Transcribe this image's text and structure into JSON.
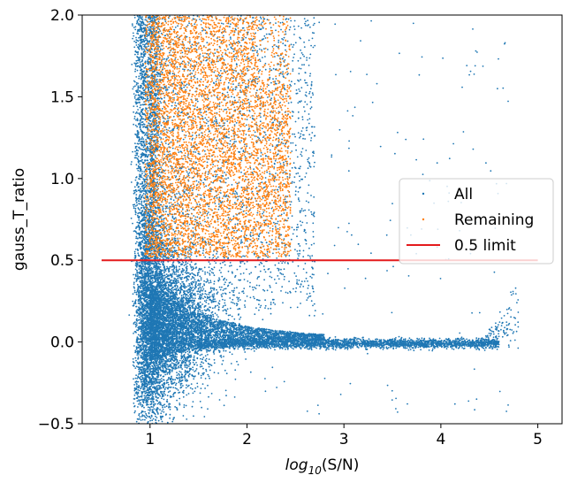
{
  "chart_data": {
    "type": "scatter",
    "title": "",
    "xlabel_prefix": "log",
    "xlabel_subscript": "10",
    "xlabel_suffix": "(S/N)",
    "ylabel": "gauss_T_ratio",
    "xlim": [
      0.3,
      5.25
    ],
    "ylim": [
      -0.5,
      2.0
    ],
    "x_ticks": [
      1,
      2,
      3,
      4,
      5
    ],
    "y_ticks": [
      -0.5,
      0.0,
      0.5,
      1.0,
      1.5,
      2.0
    ],
    "x_tick_labels": [
      "1",
      "2",
      "3",
      "4",
      "5"
    ],
    "y_tick_labels": [
      "−0.5",
      "0.0",
      "0.5",
      "1.0",
      "1.5",
      "2.0"
    ],
    "grid": false,
    "legend_position": "center-right",
    "series": [
      {
        "name": "All",
        "color": "#1f77b4",
        "marker": "point",
        "description_shape": {
          "x_min": 0.8,
          "x_max": 4.8,
          "y_min": -0.45,
          "y_max": 2.0,
          "dense_plateau_y": 0.0,
          "plateau_x_range": [
            1.5,
            4.6
          ]
        }
      },
      {
        "name": "Remaining",
        "color": "#ff7f0e",
        "marker": "point",
        "description_shape": {
          "x_min": 0.95,
          "x_max": 2.5,
          "y_min": 0.5,
          "y_max": 2.0
        }
      },
      {
        "name": "0.5 limit",
        "color": "#e41a1c",
        "marker": "line",
        "x": [
          0.5,
          5.0
        ],
        "y": [
          0.5,
          0.5
        ]
      }
    ]
  }
}
